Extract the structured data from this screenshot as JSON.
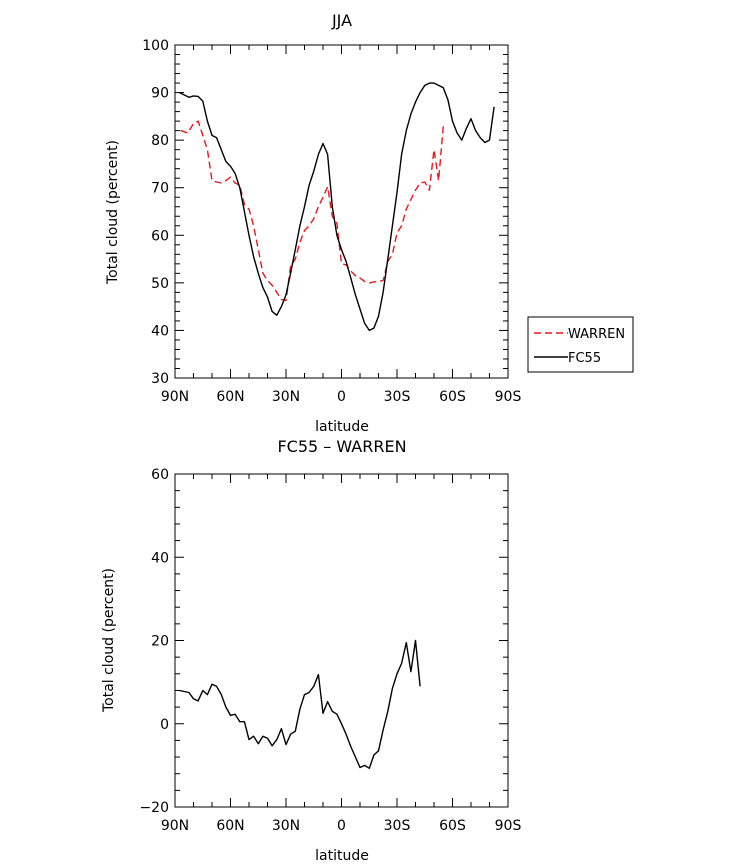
{
  "chart_data": [
    {
      "type": "line",
      "title": "JJA",
      "xlabel": "latitude",
      "ylabel": "Total cloud (percent)",
      "xlim": [
        90,
        -90
      ],
      "ylim": [
        30,
        100
      ],
      "x_tick_values": [
        90,
        60,
        30,
        0,
        -30,
        -60,
        -90
      ],
      "x_tick_labels": [
        "90N",
        "60N",
        "30N",
        "0",
        "30S",
        "60S",
        "90S"
      ],
      "y_tick_values": [
        30,
        40,
        50,
        60,
        70,
        80,
        90,
        100
      ],
      "y_tick_labels": [
        "30",
        "40",
        "50",
        "60",
        "70",
        "80",
        "90",
        "100"
      ],
      "legend": {
        "placement": "right",
        "entries": [
          "WARREN",
          "FC55"
        ]
      },
      "series": [
        {
          "name": "WARREN",
          "color": "#e8161d",
          "dash": "dashed",
          "points": [
            [
              87,
              82
            ],
            [
              83,
              81.5
            ],
            [
              80,
              83.5
            ],
            [
              77.5,
              84
            ],
            [
              75,
              81
            ],
            [
              72.5,
              78
            ],
            [
              70,
              71.5
            ],
            [
              67.5,
              71.2
            ],
            [
              65,
              71
            ],
            [
              62.5,
              71.5
            ],
            [
              60,
              72.2
            ],
            [
              57.5,
              71
            ],
            [
              55,
              70.5
            ],
            [
              52.5,
              66.5
            ],
            [
              50,
              65.5
            ],
            [
              47.5,
              62
            ],
            [
              45,
              57
            ],
            [
              42.5,
              52
            ],
            [
              40,
              50.5
            ],
            [
              37.5,
              49.5
            ],
            [
              35,
              48
            ],
            [
              32.5,
              46.5
            ],
            [
              30,
              46.3
            ],
            [
              27.5,
              53.5
            ],
            [
              25,
              55
            ],
            [
              22.5,
              58.5
            ],
            [
              20,
              61
            ],
            [
              17.5,
              62
            ],
            [
              15,
              63.5
            ],
            [
              12.5,
              66
            ],
            [
              10,
              68
            ],
            [
              7.5,
              70.2
            ],
            [
              5,
              64
            ],
            [
              2.5,
              62.5
            ],
            [
              0,
              54
            ],
            [
              -2.5,
              53.8
            ],
            [
              -5,
              52.5
            ],
            [
              -7.5,
              51.5
            ],
            [
              -10,
              51
            ],
            [
              -12.5,
              50.3
            ],
            [
              -15,
              50
            ],
            [
              -17.5,
              50.2
            ],
            [
              -20,
              50.3
            ],
            [
              -22.5,
              50.5
            ],
            [
              -25,
              54.5
            ],
            [
              -27.5,
              56
            ],
            [
              -30,
              60.5
            ],
            [
              -32.5,
              62
            ],
            [
              -35,
              65.5
            ],
            [
              -37.5,
              67.5
            ],
            [
              -40,
              69.5
            ],
            [
              -42.5,
              71
            ],
            [
              -45,
              71.2
            ],
            [
              -47.5,
              69.5
            ],
            [
              -50,
              78
            ],
            [
              -52.5,
              71.5
            ],
            [
              -55,
              83
            ]
          ]
        },
        {
          "name": "FC55",
          "color": "#000000",
          "dash": "solid",
          "points": [
            [
              87.5,
              90
            ],
            [
              82.5,
              89
            ],
            [
              80,
              89.3
            ],
            [
              77.5,
              89.2
            ],
            [
              75,
              88.2
            ],
            [
              72.5,
              84
            ],
            [
              70,
              81
            ],
            [
              67.5,
              80.5
            ],
            [
              65,
              78
            ],
            [
              62.5,
              75.5
            ],
            [
              60,
              74.5
            ],
            [
              57.5,
              73
            ],
            [
              55,
              70
            ],
            [
              52.5,
              65
            ],
            [
              50,
              60
            ],
            [
              47.5,
              55.5
            ],
            [
              45,
              52
            ],
            [
              42.5,
              49
            ],
            [
              40,
              47
            ],
            [
              37.5,
              44
            ],
            [
              35,
              43.2
            ],
            [
              32.5,
              45
            ],
            [
              30,
              47.5
            ],
            [
              27.5,
              52
            ],
            [
              25,
              57
            ],
            [
              22.5,
              62
            ],
            [
              20,
              66
            ],
            [
              17.5,
              70.5
            ],
            [
              15,
              73.5
            ],
            [
              12.5,
              77
            ],
            [
              10,
              79.3
            ],
            [
              7.5,
              77
            ],
            [
              5,
              66
            ],
            [
              2.5,
              60
            ],
            [
              0,
              57
            ],
            [
              -2.5,
              54.5
            ],
            [
              -5,
              51
            ],
            [
              -7.5,
              47.5
            ],
            [
              -10,
              44.5
            ],
            [
              -12.5,
              41.5
            ],
            [
              -15,
              40
            ],
            [
              -17.5,
              40.5
            ],
            [
              -20,
              43
            ],
            [
              -22.5,
              48
            ],
            [
              -25,
              55
            ],
            [
              -27.5,
              62
            ],
            [
              -30,
              69
            ],
            [
              -32.5,
              77
            ],
            [
              -35,
              82
            ],
            [
              -37.5,
              85.5
            ],
            [
              -40,
              88
            ],
            [
              -42.5,
              90
            ],
            [
              -45,
              91.5
            ],
            [
              -47.5,
              92
            ],
            [
              -50,
              92
            ],
            [
              -52.5,
              91.5
            ],
            [
              -55,
              91
            ],
            [
              -57.5,
              88.5
            ],
            [
              -60,
              84
            ],
            [
              -62.5,
              81.5
            ],
            [
              -65,
              80
            ],
            [
              -67.5,
              82.5
            ],
            [
              -70,
              84.5
            ],
            [
              -72.5,
              82
            ],
            [
              -75,
              80.5
            ],
            [
              -77.5,
              79.5
            ],
            [
              -80,
              80
            ],
            [
              -82.5,
              87
            ]
          ]
        }
      ]
    },
    {
      "type": "line",
      "title": "FC55 – WARREN",
      "xlabel": "latitude",
      "ylabel": "Total cloud (percent)",
      "xlim": [
        90,
        -90
      ],
      "ylim": [
        -20,
        60
      ],
      "x_tick_values": [
        90,
        60,
        30,
        0,
        -30,
        -60,
        -90
      ],
      "x_tick_labels": [
        "90N",
        "60N",
        "30N",
        "0",
        "30S",
        "60S",
        "90S"
      ],
      "y_tick_values": [
        -20,
        0,
        20,
        40,
        60
      ],
      "y_tick_labels": [
        "−20",
        "0",
        "20",
        "40",
        "60"
      ],
      "series": [
        {
          "color": "#000000",
          "dash": "solid",
          "points": [
            [
              87.5,
              8
            ],
            [
              82.5,
              7.5
            ],
            [
              80,
              6
            ],
            [
              77.5,
              5.5
            ],
            [
              75,
              8
            ],
            [
              72.5,
              7
            ],
            [
              70,
              9.5
            ],
            [
              67.5,
              9
            ],
            [
              65,
              7
            ],
            [
              62.5,
              4
            ],
            [
              60,
              2
            ],
            [
              57.5,
              2.3
            ],
            [
              55,
              0.5
            ],
            [
              52.5,
              0.5
            ],
            [
              50,
              -3.8
            ],
            [
              47.5,
              -3
            ],
            [
              45,
              -4.8
            ],
            [
              42.5,
              -3
            ],
            [
              40,
              -3.5
            ],
            [
              37.5,
              -5.3
            ],
            [
              35,
              -3.8
            ],
            [
              32.5,
              -1.2
            ],
            [
              30,
              -5
            ],
            [
              27.5,
              -2.5
            ],
            [
              25,
              -1.8
            ],
            [
              22.5,
              3.5
            ],
            [
              20,
              7
            ],
            [
              17.5,
              7.5
            ],
            [
              15,
              9
            ],
            [
              12.5,
              11.8
            ],
            [
              10,
              2.5
            ],
            [
              7.5,
              5.3
            ],
            [
              5,
              3
            ],
            [
              2.5,
              2.3
            ],
            [
              0,
              0
            ],
            [
              -2.5,
              -2.5
            ],
            [
              -5,
              -5.5
            ],
            [
              -7.5,
              -8
            ],
            [
              -10,
              -10.5
            ],
            [
              -12.5,
              -10
            ],
            [
              -15,
              -10.7
            ],
            [
              -17.5,
              -7.5
            ],
            [
              -20,
              -6.5
            ],
            [
              -22.5,
              -1.5
            ],
            [
              -25,
              3
            ],
            [
              -27.5,
              8.5
            ],
            [
              -30,
              12
            ],
            [
              -32.5,
              14.5
            ],
            [
              -35,
              19.5
            ],
            [
              -37.5,
              12.5
            ],
            [
              -40,
              20
            ],
            [
              -42.5,
              9
            ]
          ]
        }
      ]
    }
  ]
}
